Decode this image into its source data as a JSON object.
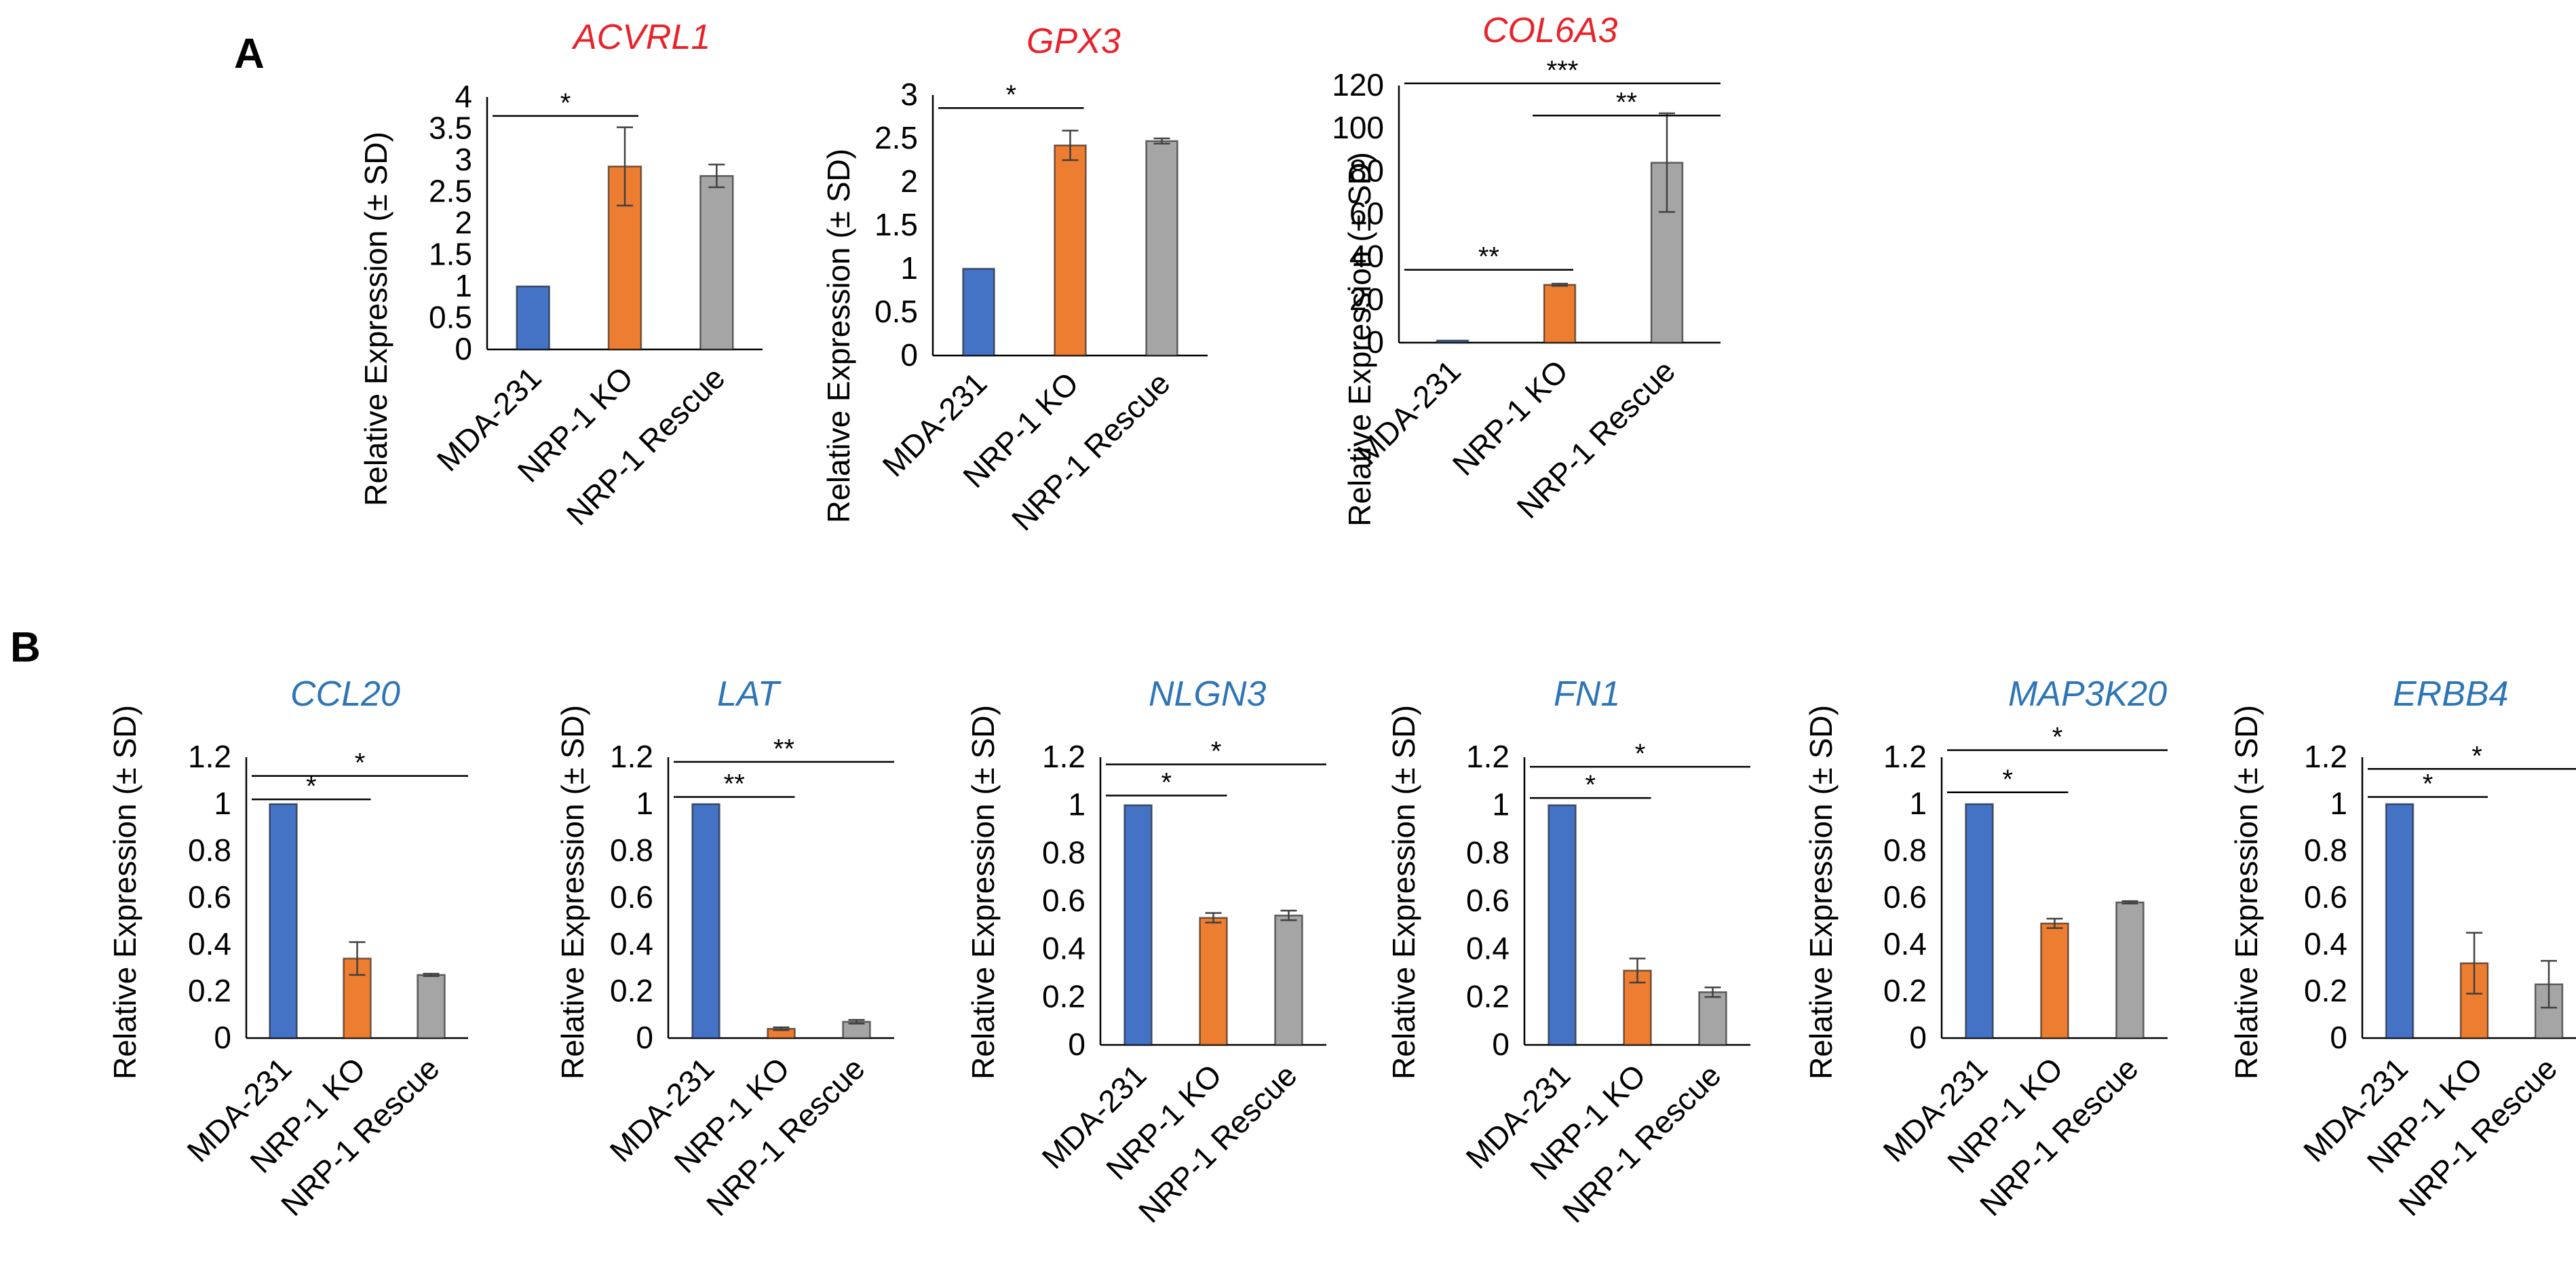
{
  "figure": {
    "panels": [
      {
        "id": "A",
        "label": "A"
      },
      {
        "id": "B",
        "label": "B"
      }
    ]
  },
  "chart_data": [
    {
      "type": "bar",
      "panel": "A",
      "title": "ACVRL1",
      "title_color": "#e8232a",
      "ylabel": "Relative Expression (± SD)",
      "categories": [
        "MDA-231",
        "NRP-1 KO",
        "NRP-1 Rescue"
      ],
      "values": [
        1,
        2.9,
        2.75
      ],
      "errors": [
        0,
        0.62,
        0.18
      ],
      "colors": [
        "#4472c4",
        "#ed7d31",
        "#a5a5a5"
      ],
      "ylim": [
        0,
        4
      ],
      "ytick_step": 0.5,
      "yticks": [
        "0",
        "0.5",
        "1",
        "1.5",
        "2",
        "2.5",
        "3",
        "3.5",
        "4"
      ],
      "significance": [
        {
          "from": 0,
          "to": 1,
          "label": "*",
          "y": 3.7
        }
      ]
    },
    {
      "type": "bar",
      "panel": "A",
      "title": "GPX3",
      "title_color": "#e8232a",
      "ylabel": "Relative Expression (± SD)",
      "categories": [
        "MDA-231",
        "NRP-1 KO",
        "NRP-1 Rescue"
      ],
      "values": [
        1,
        2.42,
        2.47
      ],
      "errors": [
        0,
        0.17,
        0.03
      ],
      "colors": [
        "#4472c4",
        "#ed7d31",
        "#a5a5a5"
      ],
      "ylim": [
        0,
        3
      ],
      "ytick_step": 0.5,
      "yticks": [
        "0",
        "0.5",
        "1",
        "1.5",
        "2",
        "2.5",
        "3"
      ],
      "significance": [
        {
          "from": 0,
          "to": 1,
          "label": "*",
          "y": 2.85
        }
      ]
    },
    {
      "type": "bar",
      "panel": "A",
      "title": "COL6A3",
      "title_color": "#e8232a",
      "ylabel": "Relative Expression (± SD)",
      "categories": [
        "MDA-231",
        "NRP-1 KO",
        "NRP-1 Rescue"
      ],
      "values": [
        1,
        27,
        84
      ],
      "errors": [
        0,
        0.5,
        23
      ],
      "colors": [
        "#4472c4",
        "#ed7d31",
        "#a5a5a5"
      ],
      "ylim": [
        0,
        120
      ],
      "ytick_step": 20,
      "yticks": [
        "0",
        "20",
        "40",
        "60",
        "80",
        "100",
        "120"
      ],
      "significance": [
        {
          "from": 0,
          "to": 2,
          "label": "***",
          "y": 121
        },
        {
          "from": 1,
          "to": 2,
          "label": "**",
          "y": 106
        },
        {
          "from": 0,
          "to": 1,
          "label": "**",
          "y": 34
        }
      ]
    },
    {
      "type": "bar",
      "panel": "B",
      "title": "CCL20",
      "title_color": "#2e75b6",
      "ylabel": "Relative Expression (± SD)",
      "categories": [
        "MDA-231",
        "NRP-1 KO",
        "NRP-1 Rescue"
      ],
      "values": [
        1,
        0.34,
        0.27
      ],
      "errors": [
        0,
        0.07,
        0.005
      ],
      "colors": [
        "#4472c4",
        "#ed7d31",
        "#a5a5a5"
      ],
      "ylim": [
        0,
        1.2
      ],
      "ytick_step": 0.2,
      "yticks": [
        "0",
        "0.2",
        "0.4",
        "0.6",
        "0.8",
        "1",
        "1.2"
      ],
      "significance": [
        {
          "from": 0,
          "to": 2,
          "label": "*",
          "y": 1.12
        },
        {
          "from": 0,
          "to": 1,
          "label": "*",
          "y": 1.02
        }
      ]
    },
    {
      "type": "bar",
      "panel": "B",
      "title": "LAT",
      "title_color": "#2e75b6",
      "ylabel": "Relative Expression (± SD)",
      "categories": [
        "MDA-231",
        "NRP-1 KO",
        "NRP-1 Rescue"
      ],
      "values": [
        1,
        0.04,
        0.07
      ],
      "errors": [
        0,
        0.006,
        0.008
      ],
      "colors": [
        "#4472c4",
        "#ed7d31",
        "#a5a5a5"
      ],
      "ylim": [
        0,
        1.2
      ],
      "ytick_step": 0.2,
      "yticks": [
        "0",
        "0.2",
        "0.4",
        "0.6",
        "0.8",
        "1",
        "1.2"
      ],
      "significance": [
        {
          "from": 0,
          "to": 2,
          "label": "**",
          "y": 1.18
        },
        {
          "from": 0,
          "to": 1,
          "label": "**",
          "y": 1.03
        }
      ]
    },
    {
      "type": "bar",
      "panel": "B",
      "title": "NLGN3",
      "title_color": "#2e75b6",
      "ylabel": "Relative Expression (± SD)",
      "categories": [
        "MDA-231",
        "NRP-1 KO",
        "NRP-1 Rescue"
      ],
      "values": [
        1,
        0.53,
        0.54
      ],
      "errors": [
        0,
        0.02,
        0.02
      ],
      "colors": [
        "#4472c4",
        "#ed7d31",
        "#a5a5a5"
      ],
      "ylim": [
        0,
        1.2
      ],
      "ytick_step": 0.2,
      "yticks": [
        "0",
        "0.2",
        "0.4",
        "0.6",
        "0.8",
        "1",
        "1.2"
      ],
      "significance": [
        {
          "from": 0,
          "to": 2,
          "label": "*",
          "y": 1.17
        },
        {
          "from": 0,
          "to": 1,
          "label": "*",
          "y": 1.04
        }
      ]
    },
    {
      "type": "bar",
      "panel": "B",
      "title": "FN1",
      "title_color": "#2e75b6",
      "ylabel": "Relative Expression (± SD)",
      "categories": [
        "MDA-231",
        "NRP-1 KO",
        "NRP-1 Rescue"
      ],
      "values": [
        1,
        0.31,
        0.22
      ],
      "errors": [
        0,
        0.05,
        0.02
      ],
      "colors": [
        "#4472c4",
        "#ed7d31",
        "#a5a5a5"
      ],
      "ylim": [
        0,
        1.2
      ],
      "ytick_step": 0.2,
      "yticks": [
        "0",
        "0.2",
        "0.4",
        "0.6",
        "0.8",
        "1",
        "1.2"
      ],
      "significance": [
        {
          "from": 0,
          "to": 2,
          "label": "*",
          "y": 1.16
        },
        {
          "from": 0,
          "to": 1,
          "label": "*",
          "y": 1.03
        }
      ]
    },
    {
      "type": "bar",
      "panel": "B",
      "title": "MAP3K20",
      "title_color": "#2e75b6",
      "ylabel": "Relative Expression (± SD)",
      "categories": [
        "MDA-231",
        "NRP-1 KO",
        "NRP-1 Rescue"
      ],
      "values": [
        1,
        0.49,
        0.58
      ],
      "errors": [
        0,
        0.02,
        0.005
      ],
      "colors": [
        "#4472c4",
        "#ed7d31",
        "#a5a5a5"
      ],
      "ylim": [
        0,
        1.2
      ],
      "ytick_step": 0.2,
      "yticks": [
        "0",
        "0.2",
        "0.4",
        "0.6",
        "0.8",
        "1",
        "1.2"
      ],
      "significance": [
        {
          "from": 0,
          "to": 2,
          "label": "*",
          "y": 1.23
        },
        {
          "from": 0,
          "to": 1,
          "label": "*",
          "y": 1.05
        }
      ]
    },
    {
      "type": "bar",
      "panel": "B",
      "title": "ERBB4",
      "title_color": "#2e75b6",
      "ylabel": "Relative Expression (± SD)",
      "categories": [
        "MDA-231",
        "NRP-1 KO",
        "NRP-1 Rescue"
      ],
      "values": [
        1,
        0.32,
        0.23
      ],
      "errors": [
        0,
        0.13,
        0.1
      ],
      "colors": [
        "#4472c4",
        "#ed7d31",
        "#a5a5a5"
      ],
      "ylim": [
        0,
        1.2
      ],
      "ytick_step": 0.2,
      "yticks": [
        "0",
        "0.2",
        "0.4",
        "0.6",
        "0.8",
        "1",
        "1.2"
      ],
      "significance": [
        {
          "from": 0,
          "to": 2,
          "label": "*",
          "y": 1.15
        },
        {
          "from": 0,
          "to": 1,
          "label": "*",
          "y": 1.03
        }
      ]
    }
  ]
}
